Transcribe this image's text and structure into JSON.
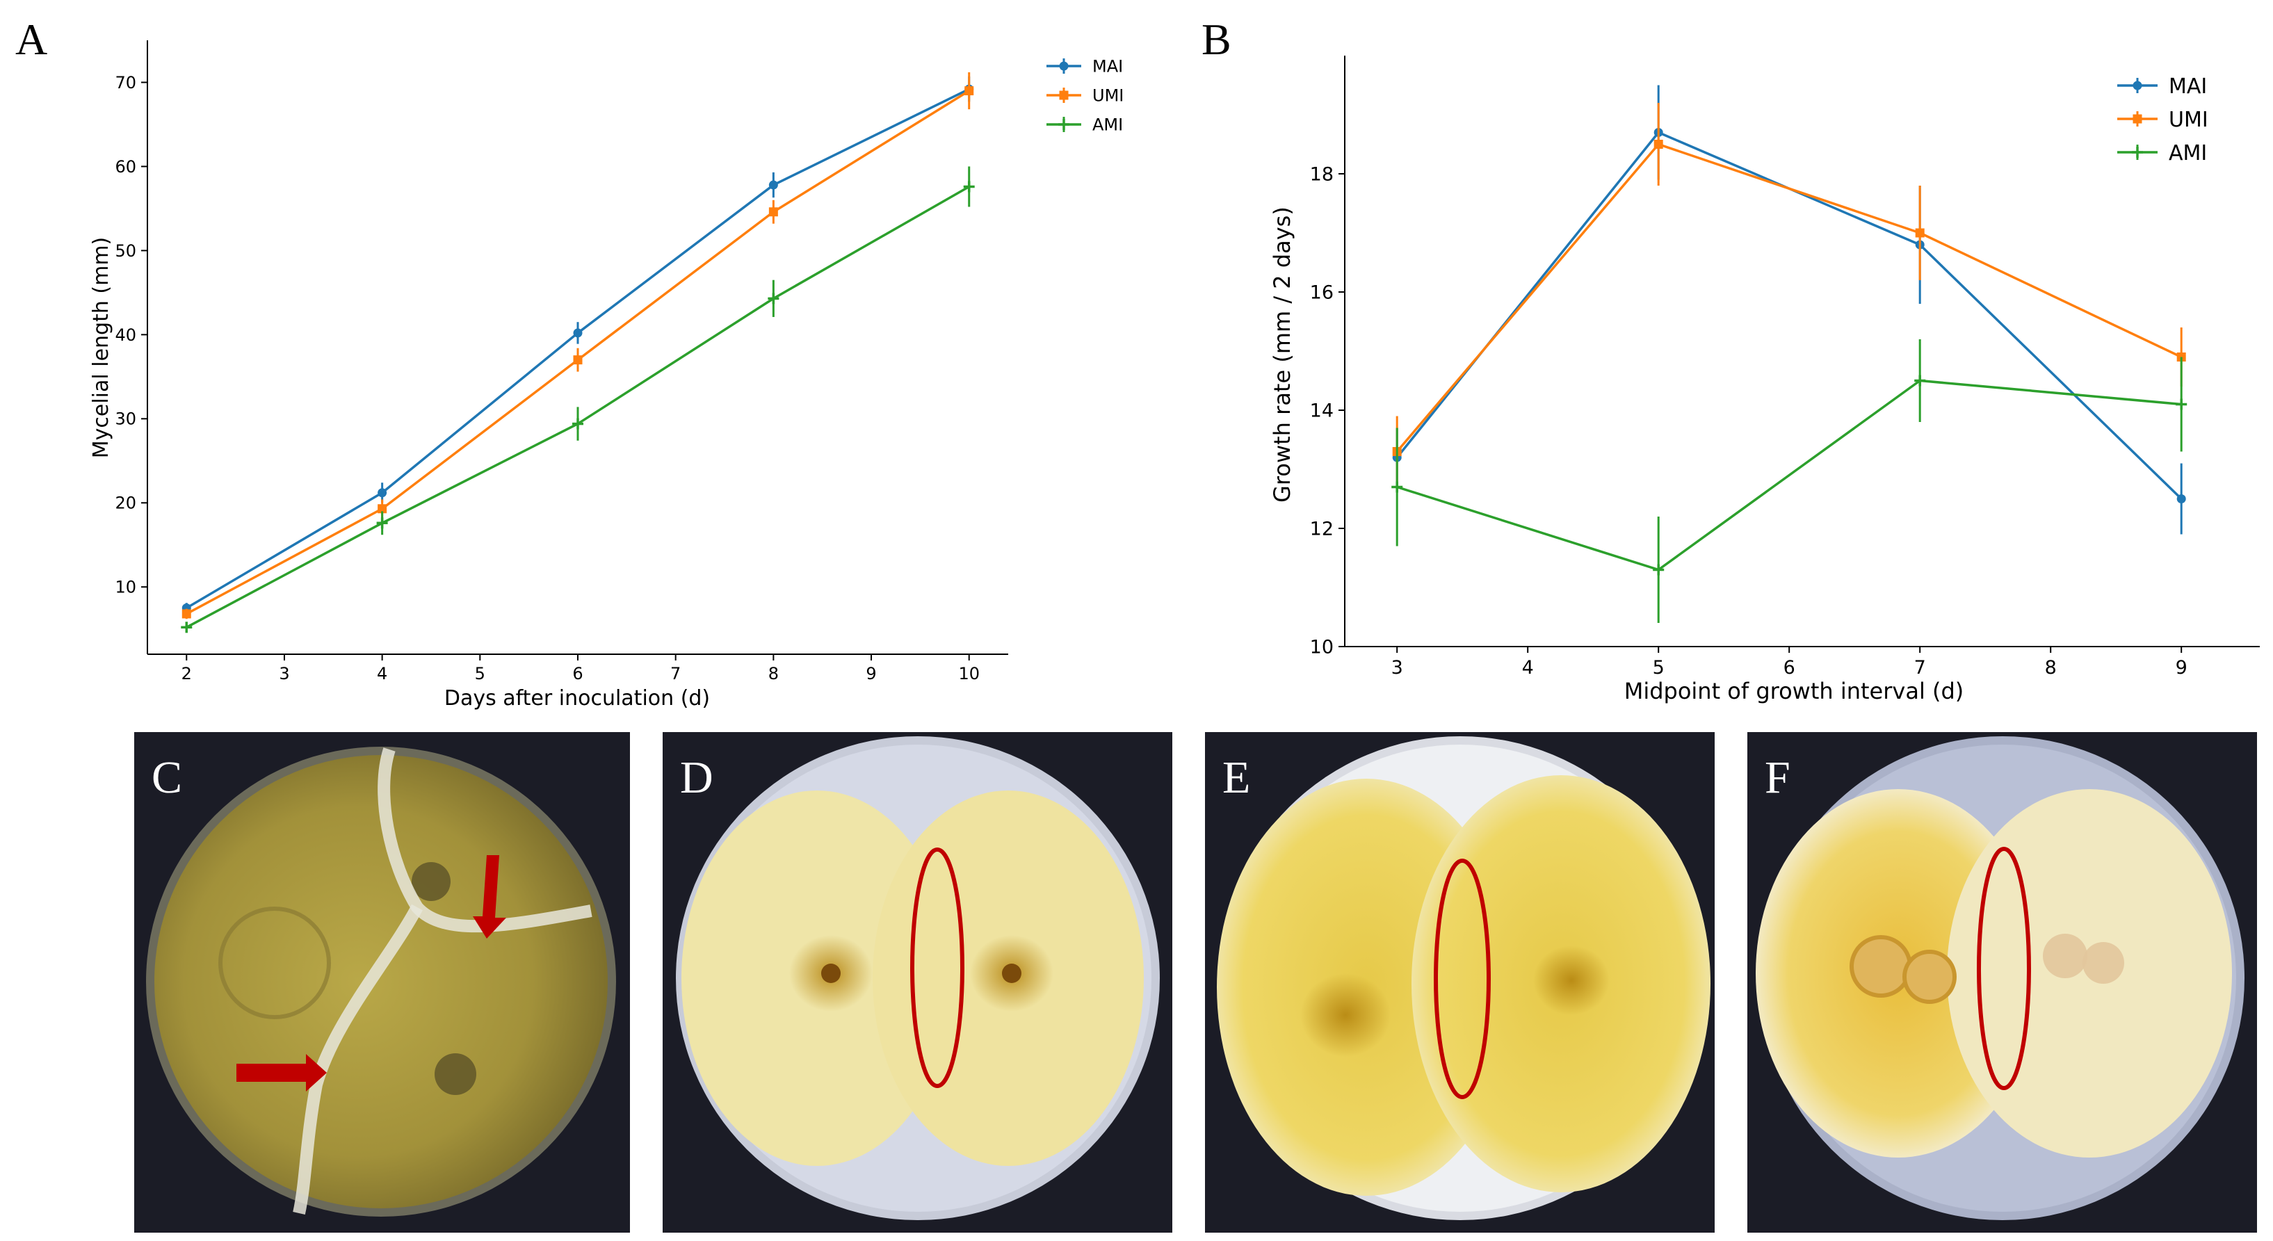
{
  "colors": {
    "MAI": "#1f77b4",
    "UMI": "#ff7f0e",
    "AMI": "#2ca02c",
    "annotation_red": "#c00000",
    "photo_background": "#1b1c26"
  },
  "chart_data": [
    {
      "panel": "A",
      "type": "line",
      "title": "",
      "xlabel": "Days after inoculation (d)",
      "ylabel": "Mycelial length (mm)",
      "xlim": [
        1.6,
        10.4
      ],
      "ylim": [
        2,
        75
      ],
      "xticks": [
        2,
        3,
        4,
        5,
        6,
        7,
        8,
        9,
        10
      ],
      "yticks": [
        10,
        20,
        30,
        40,
        50,
        60,
        70
      ],
      "grid": false,
      "legend": "top-right",
      "x": [
        2,
        4,
        6,
        8,
        10
      ],
      "series": [
        {
          "name": "MAI",
          "marker": "circle",
          "values": [
            7.5,
            21.2,
            40.2,
            57.8,
            69.2
          ],
          "errors": [
            0.6,
            1.2,
            1.3,
            1.5,
            1.5
          ]
        },
        {
          "name": "UMI",
          "marker": "square",
          "values": [
            6.8,
            19.3,
            37.0,
            54.6,
            69.0
          ],
          "errors": [
            0.6,
            1.1,
            1.4,
            1.4,
            2.2
          ]
        },
        {
          "name": "AMI",
          "marker": "plus",
          "values": [
            5.2,
            17.6,
            29.4,
            44.3,
            57.6
          ],
          "errors": [
            0.6,
            1.4,
            2.0,
            2.2,
            2.4
          ]
        }
      ]
    },
    {
      "panel": "B",
      "type": "line",
      "title": "",
      "xlabel": "Midpoint of growth interval (d)",
      "ylabel": "Growth rate (mm / 2 days)",
      "xlim": [
        2.6,
        9.6
      ],
      "ylim": [
        10,
        20
      ],
      "xticks": [
        3,
        4,
        5,
        6,
        7,
        8,
        9
      ],
      "yticks": [
        10,
        12,
        14,
        16,
        18
      ],
      "grid": false,
      "legend": "top-right",
      "x": [
        3,
        5,
        7,
        9
      ],
      "series": [
        {
          "name": "MAI",
          "marker": "circle",
          "values": [
            13.2,
            18.7,
            16.8,
            12.5
          ],
          "errors": [
            0.5,
            0.8,
            1.0,
            0.6
          ]
        },
        {
          "name": "UMI",
          "marker": "square",
          "values": [
            13.3,
            18.5,
            17.0,
            14.9
          ],
          "errors": [
            0.6,
            0.7,
            0.8,
            0.5
          ]
        },
        {
          "name": "AMI",
          "marker": "plus",
          "values": [
            12.7,
            11.3,
            14.5,
            14.1
          ],
          "errors": [
            1.0,
            0.9,
            0.7,
            0.8
          ]
        }
      ]
    }
  ],
  "photos": [
    {
      "label": "C",
      "annotation": "red arrows marking boundaries between three colonies"
    },
    {
      "label": "D",
      "annotation": "red ellipse marking contact zone"
    },
    {
      "label": "E",
      "annotation": "red ellipse marking contact zone"
    },
    {
      "label": "F",
      "annotation": "red ellipse marking contact zone"
    }
  ],
  "panel_labels": {
    "A": "A",
    "B": "B"
  }
}
